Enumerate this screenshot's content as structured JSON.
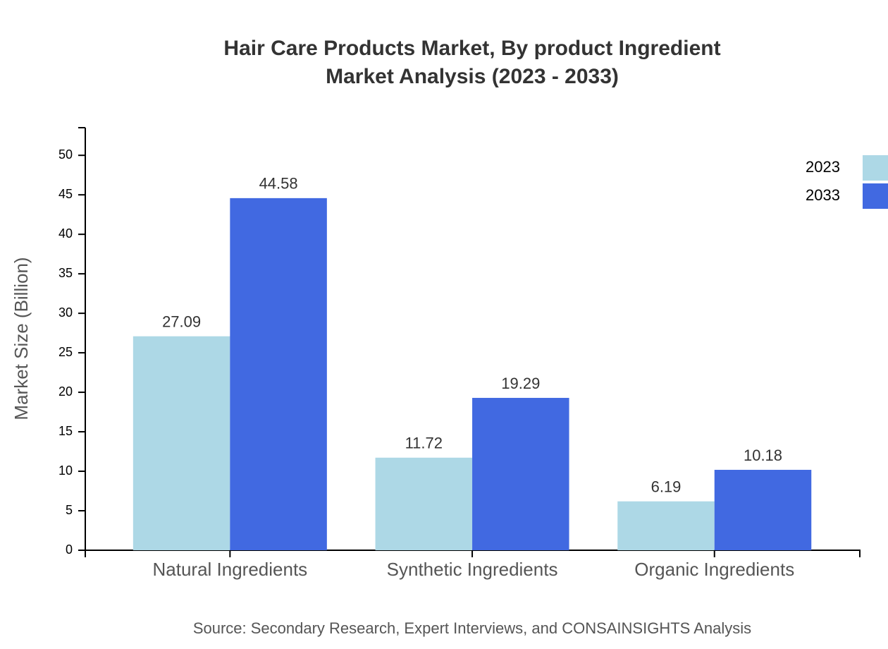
{
  "chart_data": {
    "type": "bar",
    "title": [
      "Hair Care Products Market, By product Ingredient",
      "Market Analysis (2023 - 2033)"
    ],
    "y_label": "Market Size (Billion)",
    "source": "Source: Secondary Research, Expert Interviews, and CONSAINSIGHTS Analysis",
    "categories": [
      "Natural Ingredients",
      "Synthetic Ingredients",
      "Organic Ingredients"
    ],
    "series": [
      {
        "name": "2023",
        "color": "#add8e6",
        "values": [
          27.09,
          11.72,
          6.19
        ]
      },
      {
        "name": "2033",
        "color": "#4169e1",
        "values": [
          44.58,
          19.29,
          10.18
        ]
      }
    ],
    "ylim": [
      0,
      53.5
    ],
    "yticks": [
      0,
      5,
      10,
      15,
      20,
      25,
      30,
      35,
      40,
      45,
      50
    ],
    "legend": "top-right"
  }
}
